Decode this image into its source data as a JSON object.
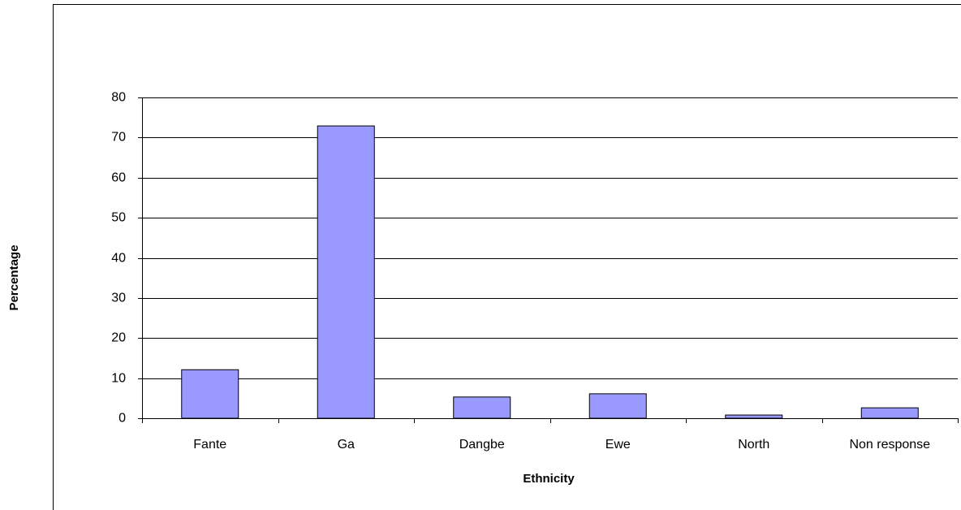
{
  "chart_data": {
    "type": "bar",
    "x_label": "Ethnicity",
    "y_label": "Percentage",
    "categories": [
      "Fante",
      "Ga",
      "Dangbe",
      "Ewe",
      "North",
      "Non response"
    ],
    "values": [
      12.1,
      72.9,
      5.3,
      6.1,
      0.8,
      2.6
    ],
    "color": "#9999ff",
    "ylim": [
      0,
      80
    ],
    "yticks": [
      0,
      10,
      20,
      30,
      40,
      50,
      60,
      70,
      80
    ],
    "grid": true
  }
}
